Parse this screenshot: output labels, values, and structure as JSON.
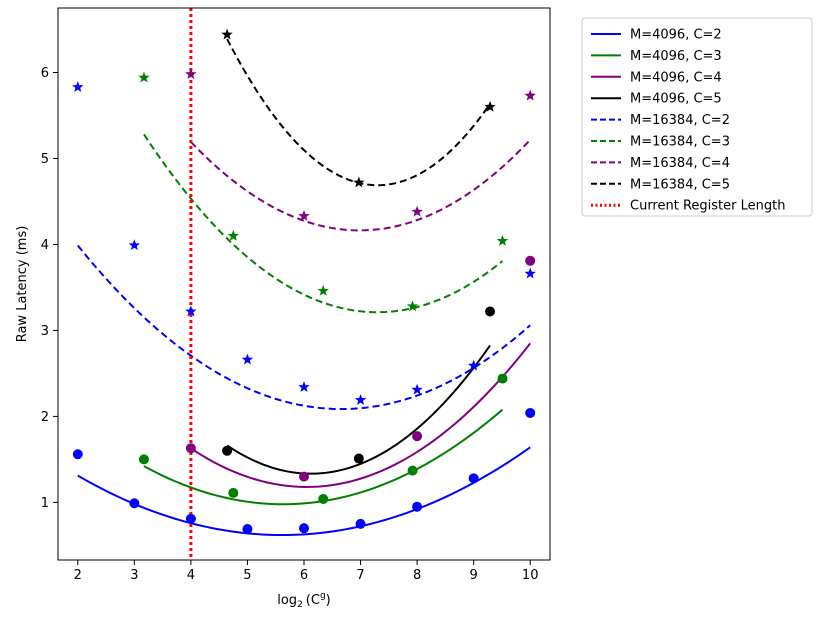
{
  "chart_data": {
    "type": "line",
    "title": "",
    "xlabel": "log₂(Cᵍ)",
    "xlabel_parts": {
      "base": "log",
      "sub": "2",
      "paren_open": "(C",
      "sup": "g",
      "paren_close": ")"
    },
    "ylabel": "Raw Latency (ms)",
    "xlim": [
      1.65,
      10.35
    ],
    "ylim": [
      0.33,
      6.75
    ],
    "xticks": [
      2,
      3,
      4,
      5,
      6,
      7,
      8,
      9,
      10
    ],
    "yticks": [
      1,
      2,
      3,
      4,
      5,
      6
    ],
    "grid": false,
    "legend_position": "outside-top-right",
    "series": [
      {
        "name": "M=4096, C=2",
        "color": "#0000ff",
        "linestyle": "solid",
        "marker": "circle",
        "points": [
          [
            2,
            1.56
          ],
          [
            3,
            0.99
          ],
          [
            4,
            0.81
          ],
          [
            5,
            0.69
          ],
          [
            6,
            0.7
          ],
          [
            7,
            0.75
          ],
          [
            8,
            0.95
          ],
          [
            9,
            1.28
          ],
          [
            10,
            2.04
          ]
        ],
        "fit": [
          0.053,
          -0.595,
          2.29
        ],
        "fit_range": [
          2,
          10
        ]
      },
      {
        "name": "M=4096, C=3",
        "color": "#008000",
        "linestyle": "solid",
        "marker": "circle",
        "points": [
          [
            3.17,
            1.5
          ],
          [
            4.75,
            1.11
          ],
          [
            6.34,
            1.04
          ],
          [
            7.92,
            1.37
          ],
          [
            9.51,
            2.44
          ]
        ],
        "fit": [
          0.0732,
          -0.8245,
          3.3
        ],
        "fit_range": [
          3.17,
          9.51
        ]
      },
      {
        "name": "M=4096, C=4",
        "color": "#800080",
        "linestyle": "solid",
        "marker": "circle",
        "points": [
          [
            4,
            1.63
          ],
          [
            6,
            1.3
          ],
          [
            8,
            1.77
          ],
          [
            10,
            3.81
          ]
        ],
        "fit": [
          0.1069,
          -1.2931,
          5.09
        ],
        "fit_range": [
          4,
          10
        ]
      },
      {
        "name": "M=4096, C=5",
        "color": "#000000",
        "linestyle": "solid",
        "marker": "circle",
        "points": [
          [
            4.64,
            1.6
          ],
          [
            6.97,
            1.51
          ],
          [
            9.29,
            3.22
          ]
        ],
        "fit": [
          0.1489,
          -1.824,
          6.92
        ],
        "fit_range": [
          4.64,
          9.29
        ]
      },
      {
        "name": "M=16384, C=2",
        "color": "#0000ff",
        "linestyle": "dashed",
        "marker": "star",
        "points": [
          [
            2,
            5.83
          ],
          [
            3,
            3.99
          ],
          [
            4,
            3.22
          ],
          [
            5,
            2.66
          ],
          [
            6,
            2.34
          ],
          [
            7,
            2.19
          ],
          [
            8,
            2.31
          ],
          [
            9,
            2.59
          ],
          [
            10,
            3.66
          ]
        ],
        "fit": [
          0.0875,
          -1.166,
          5.97
        ],
        "fit_range": [
          2,
          10
        ]
      },
      {
        "name": "M=16384, C=3",
        "color": "#008000",
        "linestyle": "dashed",
        "marker": "star",
        "points": [
          [
            3.17,
            5.94
          ],
          [
            4.75,
            4.1
          ],
          [
            6.34,
            3.46
          ],
          [
            7.92,
            3.28
          ],
          [
            9.51,
            4.04
          ]
        ],
        "fit": [
          0.1215,
          -1.773,
          9.68
        ],
        "fit_range": [
          3.17,
          9.51
        ]
      },
      {
        "name": "M=16384, C=4",
        "color": "#800080",
        "linestyle": "dashed",
        "marker": "star",
        "points": [
          [
            4,
            5.98
          ],
          [
            6,
            4.33
          ],
          [
            8,
            4.38
          ],
          [
            10,
            5.73
          ]
        ],
        "fit": [
          0.1156,
          -1.6144,
          9.8
        ],
        "fit_range": [
          4,
          10
        ]
      },
      {
        "name": "M=16384, C=5",
        "color": "#000000",
        "linestyle": "dashed",
        "marker": "star",
        "points": [
          [
            4.64,
            6.44
          ],
          [
            6.97,
            4.72
          ],
          [
            9.29,
            5.6
          ]
        ],
        "fit": [
          0.2398,
          -3.5027,
          17.48
        ],
        "fit_range": [
          4.64,
          9.29
        ]
      }
    ],
    "reference_line": {
      "name": "Current Register Length",
      "x": 4,
      "color": "#ff0000",
      "linestyle": "dotted"
    }
  }
}
